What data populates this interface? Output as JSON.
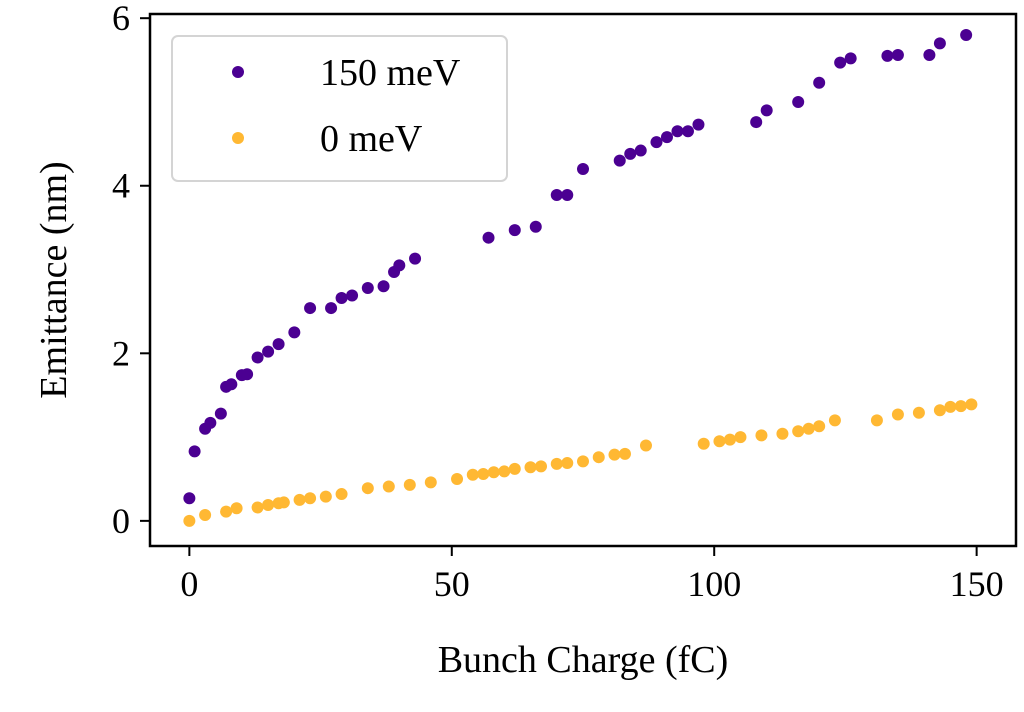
{
  "chart_data": {
    "type": "scatter",
    "title": "",
    "xlabel": "Bunch Charge (fC)",
    "ylabel": "Emittance (nm)",
    "xlim": [
      -7.5,
      157.5
    ],
    "ylim": [
      -0.3,
      6.05
    ],
    "xticks": [
      0,
      50,
      100,
      150
    ],
    "yticks": [
      0,
      2,
      4,
      6
    ],
    "grid": false,
    "legend_position": "upper-left",
    "series": [
      {
        "name": "150 meV",
        "color": "#4B0092",
        "points": [
          [
            0,
            0.27
          ],
          [
            1,
            0.83
          ],
          [
            3,
            1.1
          ],
          [
            4,
            1.17
          ],
          [
            6,
            1.28
          ],
          [
            7,
            1.6
          ],
          [
            8,
            1.63
          ],
          [
            10,
            1.74
          ],
          [
            11,
            1.75
          ],
          [
            13,
            1.95
          ],
          [
            15,
            2.02
          ],
          [
            17,
            2.11
          ],
          [
            20,
            2.25
          ],
          [
            23,
            2.54
          ],
          [
            27,
            2.54
          ],
          [
            29,
            2.66
          ],
          [
            31,
            2.69
          ],
          [
            34,
            2.78
          ],
          [
            37,
            2.8
          ],
          [
            39,
            2.97
          ],
          [
            40,
            3.05
          ],
          [
            43,
            3.13
          ],
          [
            57,
            3.38
          ],
          [
            62,
            3.47
          ],
          [
            66,
            3.51
          ],
          [
            70,
            3.89
          ],
          [
            72,
            3.89
          ],
          [
            75,
            4.2
          ],
          [
            82,
            4.3
          ],
          [
            84,
            4.38
          ],
          [
            86,
            4.42
          ],
          [
            89,
            4.52
          ],
          [
            91,
            4.58
          ],
          [
            93,
            4.65
          ],
          [
            95,
            4.65
          ],
          [
            97,
            4.73
          ],
          [
            108,
            4.76
          ],
          [
            110,
            4.9
          ],
          [
            116,
            5.0
          ],
          [
            120,
            5.23
          ],
          [
            124,
            5.47
          ],
          [
            126,
            5.52
          ],
          [
            133,
            5.55
          ],
          [
            135,
            5.56
          ],
          [
            141,
            5.56
          ],
          [
            143,
            5.7
          ],
          [
            148,
            5.8
          ]
        ]
      },
      {
        "name": "0 meV",
        "color": "#FFB833",
        "points": [
          [
            0,
            0.0
          ],
          [
            3,
            0.07
          ],
          [
            7,
            0.11
          ],
          [
            9,
            0.15
          ],
          [
            13,
            0.16
          ],
          [
            15,
            0.19
          ],
          [
            17,
            0.21
          ],
          [
            18,
            0.22
          ],
          [
            21,
            0.25
          ],
          [
            23,
            0.27
          ],
          [
            26,
            0.29
          ],
          [
            29,
            0.32
          ],
          [
            34,
            0.39
          ],
          [
            38,
            0.41
          ],
          [
            42,
            0.43
          ],
          [
            46,
            0.46
          ],
          [
            51,
            0.5
          ],
          [
            54,
            0.55
          ],
          [
            56,
            0.56
          ],
          [
            58,
            0.58
          ],
          [
            60,
            0.59
          ],
          [
            62,
            0.62
          ],
          [
            65,
            0.64
          ],
          [
            67,
            0.65
          ],
          [
            70,
            0.68
          ],
          [
            72,
            0.69
          ],
          [
            75,
            0.71
          ],
          [
            78,
            0.76
          ],
          [
            81,
            0.79
          ],
          [
            83,
            0.8
          ],
          [
            87,
            0.9
          ],
          [
            98,
            0.92
          ],
          [
            101,
            0.95
          ],
          [
            103,
            0.97
          ],
          [
            105,
            1.0
          ],
          [
            109,
            1.02
          ],
          [
            113,
            1.04
          ],
          [
            116,
            1.07
          ],
          [
            118,
            1.1
          ],
          [
            120,
            1.13
          ],
          [
            123,
            1.2
          ],
          [
            131,
            1.2
          ],
          [
            135,
            1.27
          ],
          [
            139,
            1.29
          ],
          [
            143,
            1.32
          ],
          [
            145,
            1.36
          ],
          [
            147,
            1.37
          ],
          [
            149,
            1.39
          ]
        ]
      }
    ]
  }
}
